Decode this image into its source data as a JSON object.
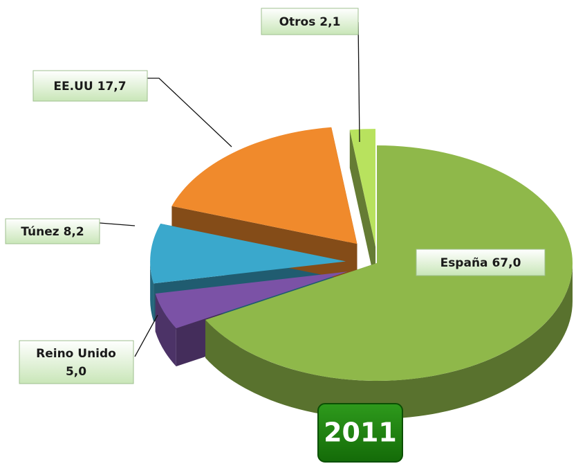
{
  "chart_data": {
    "type": "pie",
    "title": "2011",
    "categories": [
      "España",
      "Reino Unido",
      "Túnez",
      "EE.UU",
      "Otros"
    ],
    "values": [
      67.0,
      5.0,
      8.2,
      17.7,
      2.1
    ],
    "value_labels": [
      "67,0",
      "5,0",
      "8,2",
      "17,7",
      "2,1"
    ],
    "colors": [
      "#8fb84a",
      "#7b52a6",
      "#3aa8cc",
      "#f08a2c",
      "#b8e25e"
    ]
  }
}
